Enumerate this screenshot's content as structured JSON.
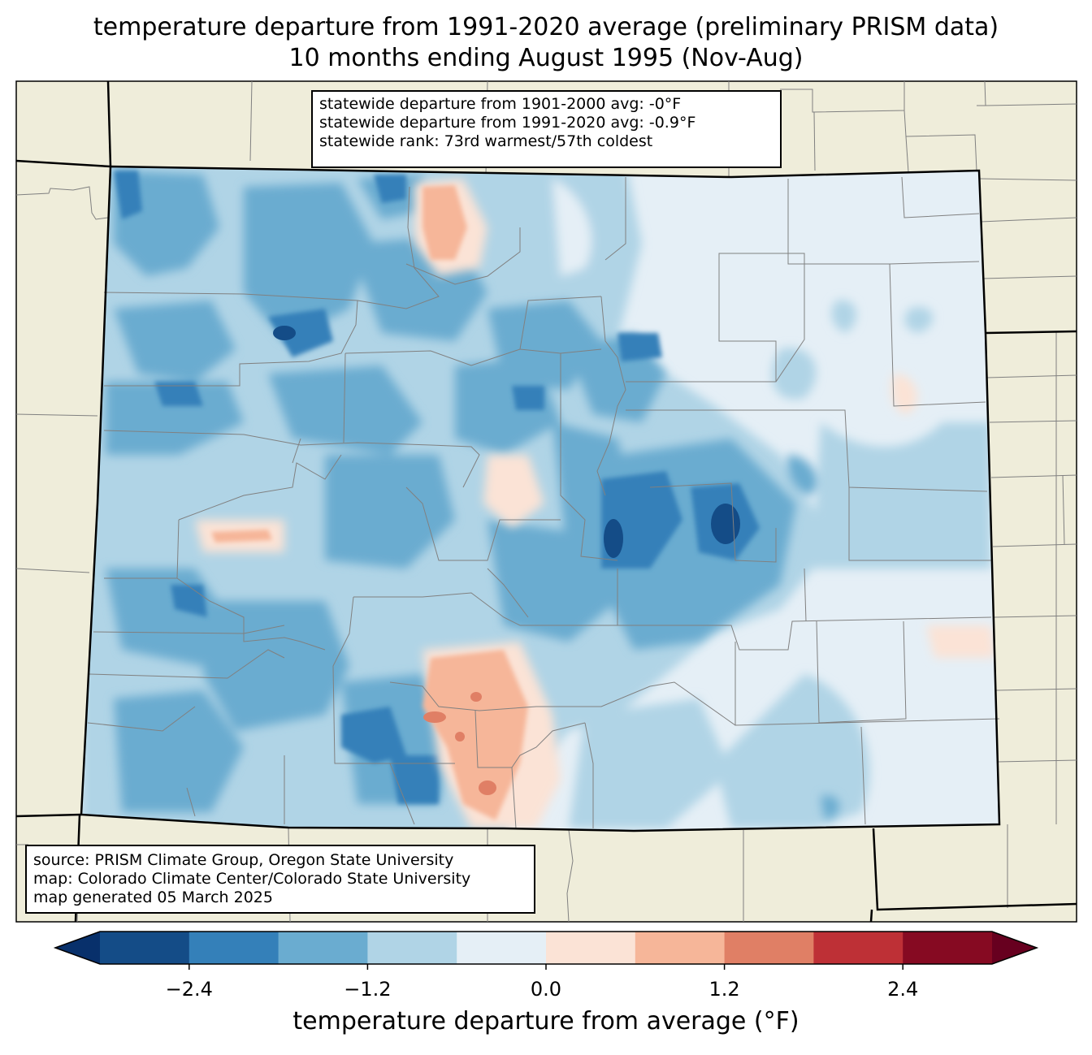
{
  "title": {
    "line1": "temperature departure from 1991-2020 average (preliminary PRISM data)",
    "line2": "10 months ending August 1995 (Nov-Aug)"
  },
  "stats": {
    "line1": "statewide departure from 1901-2000 avg: -0°F",
    "line2": "statewide departure from 1991-2020 avg: -0.9°F",
    "line3": "statewide rank: 73rd warmest/57th coldest"
  },
  "source": {
    "line1": "source: PRISM Climate Group, Oregon State University",
    "line2": "map: Colorado Climate Center/Colorado State University",
    "line3": "map generated 05 March 2025"
  },
  "colorbar": {
    "label": "temperature departure from average (°F)",
    "ticks": [
      "−2.4",
      "−1.2",
      "0.0",
      "1.2",
      "2.4"
    ],
    "tick_values": [
      -2.4,
      -1.2,
      0.0,
      1.2,
      2.4
    ],
    "bounds": [
      -3.0,
      -2.4,
      -1.8,
      -1.2,
      -0.6,
      0.0,
      0.6,
      1.2,
      1.8,
      2.4,
      3.0
    ],
    "colors": [
      "#144c87",
      "#3480b9",
      "#6aacd0",
      "#b0d4e6",
      "#e5eff6",
      "#fbe3d6",
      "#f6b699",
      "#e07f65",
      "#be3036",
      "#860a22"
    ],
    "under_color": "#08306b",
    "over_color": "#67001f"
  },
  "map_colors": {
    "land": "#efedda",
    "state_border": "#000000",
    "county_border": "#808080"
  }
}
